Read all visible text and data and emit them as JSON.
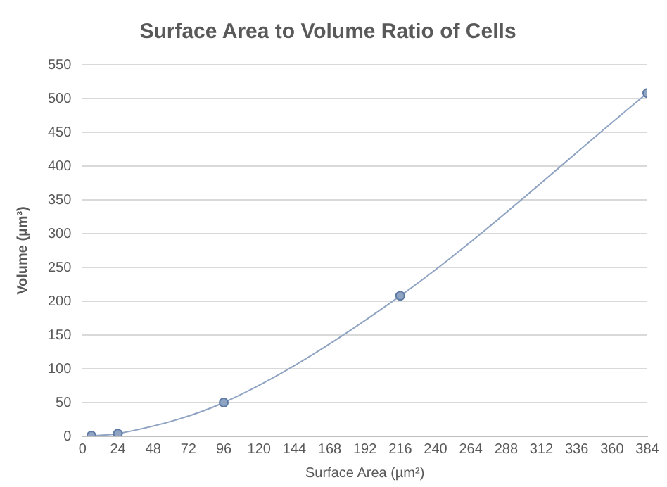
{
  "chart_data": {
    "type": "line",
    "title": "Surface Area to Volume Ratio of Cells",
    "xlabel": "Surface Area (µm²)",
    "ylabel": "Volume (µm³)",
    "x": [
      6,
      24,
      96,
      216,
      384
    ],
    "series": [
      {
        "color": "#8fa3c2",
        "values": [
          1,
          4,
          50,
          208,
          508
        ]
      }
    ],
    "xlim": [
      0,
      384
    ],
    "xticks": [
      0,
      24,
      48,
      72,
      96,
      120,
      144,
      168,
      192,
      216,
      240,
      264,
      288,
      312,
      336,
      360,
      384
    ],
    "ylim": [
      0,
      550
    ],
    "yticks": [
      0,
      50,
      100,
      150,
      200,
      250,
      300,
      350,
      400,
      450,
      500,
      550
    ],
    "grid": "y",
    "marker": "circle",
    "line_style": "solid",
    "legend": false
  }
}
